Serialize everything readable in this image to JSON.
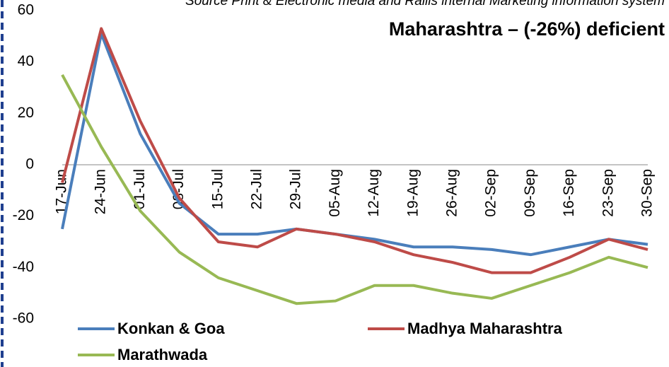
{
  "chart_data": {
    "type": "line",
    "title": "Maharashtra – (-26%) deficient",
    "source": "Source Print & Electronic media and Rallis internal Marketing information system",
    "categories": [
      "17-Jun",
      "24-Jun",
      "01-Jul",
      "08-Jul",
      "15-Jul",
      "22-Jul",
      "29-Jul",
      "05-Aug",
      "12-Aug",
      "19-Aug",
      "26-Aug",
      "02-Sep",
      "09-Sep",
      "16-Sep",
      "23-Sep",
      "30-Sep"
    ],
    "series": [
      {
        "name": "Konkan & Goa",
        "color": "#4a7ebb",
        "values": [
          -25,
          51,
          12,
          -15,
          -27,
          -27,
          -25,
          -27,
          -29,
          -32,
          -32,
          -33,
          -35,
          -32,
          -29,
          -31
        ]
      },
      {
        "name": "Madhya Maharashtra",
        "color": "#be4b48",
        "values": [
          -7,
          53,
          17,
          -13,
          -30,
          -32,
          -25,
          -27,
          -30,
          -35,
          -38,
          -42,
          -42,
          -36,
          -29,
          -33
        ]
      },
      {
        "name": "Marathwada",
        "color": "#98b954",
        "values": [
          35,
          7,
          -18,
          -34,
          -44,
          -49,
          -54,
          -53,
          -47,
          -47,
          -50,
          -52,
          -47,
          -42,
          -36,
          -40
        ]
      }
    ],
    "ylim": [
      -60,
      60
    ],
    "yticks": [
      -60,
      -40,
      -20,
      0,
      20,
      40,
      60
    ]
  }
}
